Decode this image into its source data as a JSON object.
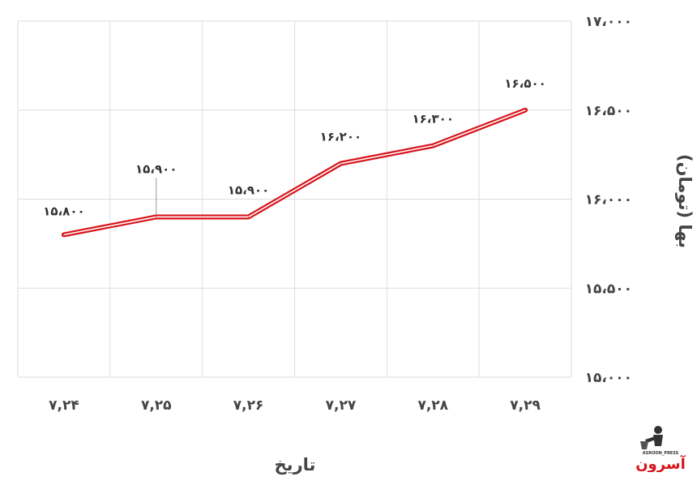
{
  "chart_data": {
    "type": "line",
    "title": "",
    "xlabel": "تاریخ",
    "ylabel": "بها (تومان)",
    "categories": [
      "۷,۲۴",
      "۷,۲۵",
      "۷,۲۶",
      "۷,۲۷",
      "۷,۲۸",
      "۷,۲۹"
    ],
    "values": [
      15800,
      15900,
      15900,
      16200,
      16300,
      16500
    ],
    "data_labels": [
      "۱۵،۸۰۰",
      "۱۵،۹۰۰",
      "۱۵،۹۰۰",
      "۱۶،۲۰۰",
      "۱۶،۳۰۰",
      "۱۶،۵۰۰"
    ],
    "ylim": [
      15000,
      17000
    ],
    "yticks": [
      15000,
      15500,
      16000,
      16500,
      17000
    ],
    "ytick_labels": [
      "۱۵،۰۰۰",
      "۱۵،۵۰۰",
      "۱۶،۰۰۰",
      "۱۶،۵۰۰",
      "۱۷،۰۰۰"
    ],
    "grid": true,
    "legend": "none",
    "y_axis_position": "right",
    "line_color": "#d7141a",
    "grid_color": "#dedede"
  },
  "logo": {
    "name": "asroon-logo",
    "text": "آسرون",
    "subtext": "ASROON_PRESS"
  }
}
